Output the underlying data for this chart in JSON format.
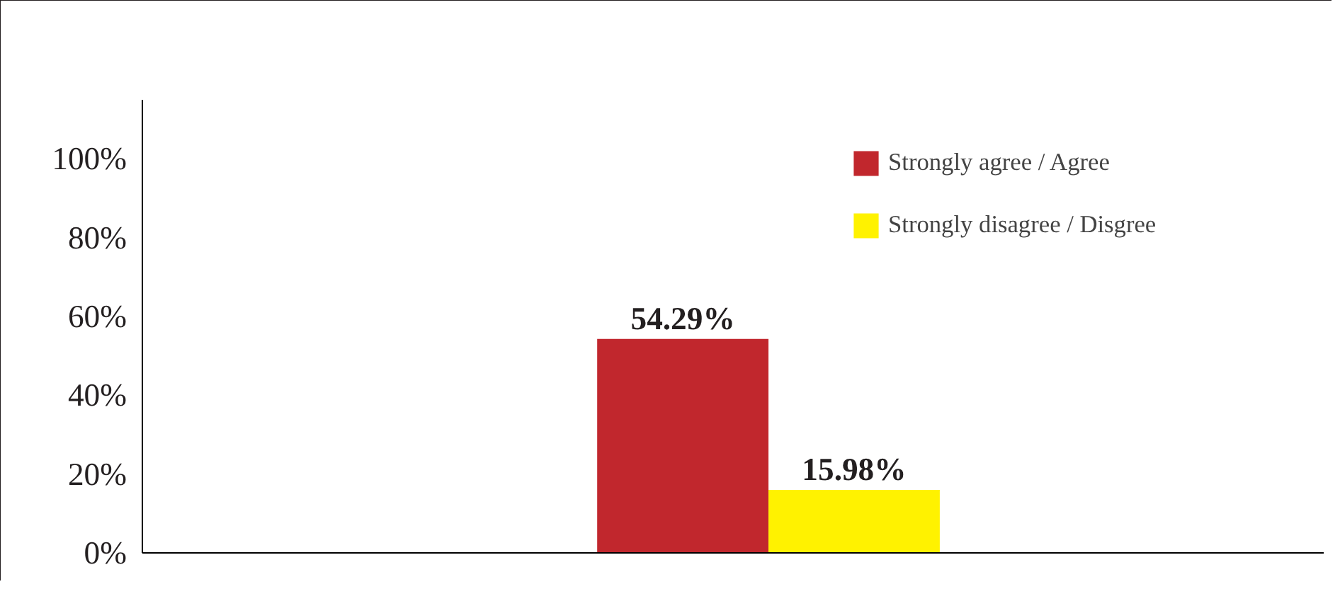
{
  "chart_data": {
    "type": "bar",
    "categories": [
      null
    ],
    "series": [
      {
        "name": "Strongly agree / Agree",
        "color": "#c1272d",
        "values": [
          54.29
        ],
        "value_labels": [
          "54.29%"
        ]
      },
      {
        "name": "Strongly disagree / Disgree",
        "color": "#fff200",
        "values": [
          15.98
        ],
        "value_labels": [
          "15.98%"
        ]
      }
    ],
    "ylim": [
      0,
      115
    ],
    "yticks": [
      {
        "value": 0,
        "label": "0%"
      },
      {
        "value": 20,
        "label": "20%"
      },
      {
        "value": 40,
        "label": "40%"
      },
      {
        "value": 60,
        "label": "60%"
      },
      {
        "value": 80,
        "label": "80%"
      },
      {
        "value": 100,
        "label": "100%"
      }
    ],
    "grid": false,
    "legend": "top right"
  }
}
